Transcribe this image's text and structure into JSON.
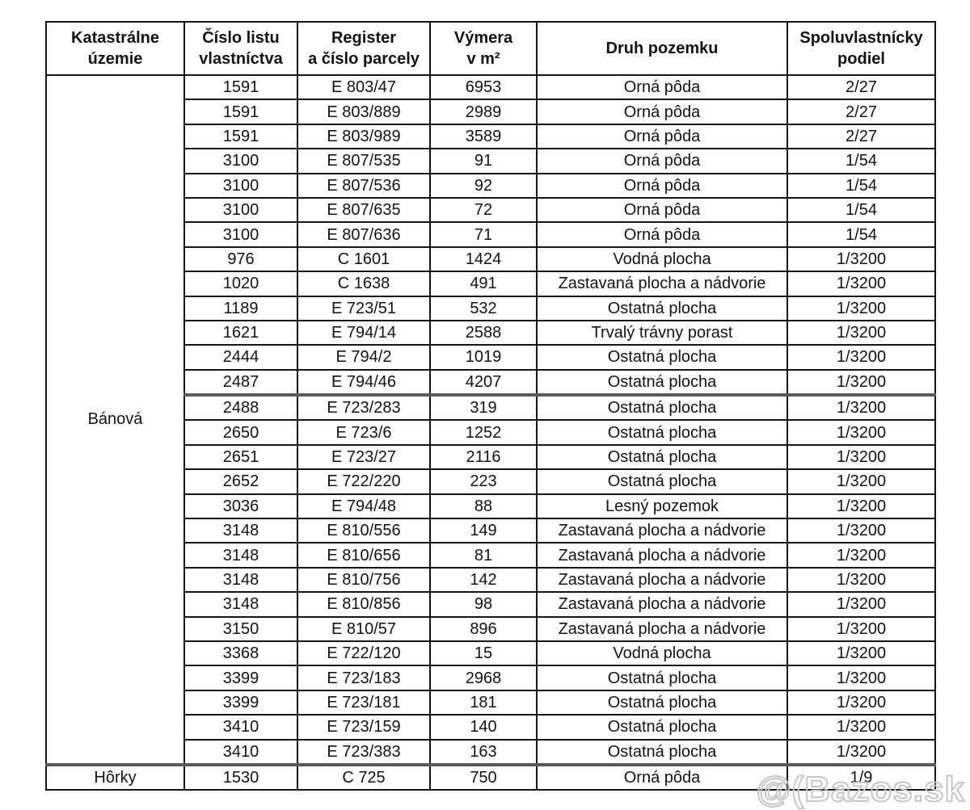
{
  "table": {
    "headers": [
      {
        "id": "katastralne-uzemie",
        "label": "Katastrálne\núzemie"
      },
      {
        "id": "cislo-listu-vlastnictva",
        "label": "Číslo listu\nvlastníctva"
      },
      {
        "id": "register-a-cislo-parcely",
        "label": "Register\na číslo parcely"
      },
      {
        "id": "vymera-v-m2",
        "label": "Výmera\nv m²"
      },
      {
        "id": "druh-pozemku",
        "label": "Druh pozemku"
      },
      {
        "id": "spoluvlastnicky-podiel",
        "label": "Spoluvlastnícky\npodiel"
      }
    ],
    "groups": [
      {
        "territory": "Bánová",
        "rows": [
          [
            "1591",
            "E 803/47",
            "6953",
            "Orná pôda",
            "2/27"
          ],
          [
            "1591",
            "E 803/889",
            "2989",
            "Orná pôda",
            "2/27"
          ],
          [
            "1591",
            "E 803/989",
            "3589",
            "Orná pôda",
            "2/27"
          ],
          [
            "3100",
            "E 807/535",
            "91",
            "Orná pôda",
            "1/54"
          ],
          [
            "3100",
            "E 807/536",
            "92",
            "Orná pôda",
            "1/54"
          ],
          [
            "3100",
            "E 807/635",
            "72",
            "Orná pôda",
            "1/54"
          ],
          [
            "3100",
            "E 807/636",
            "71",
            "Orná pôda",
            "1/54"
          ],
          [
            "976",
            "C 1601",
            "1424",
            "Vodná plocha",
            "1/3200"
          ],
          [
            "1020",
            "C 1638",
            "491",
            "Zastavaná plocha a nádvorie",
            "1/3200"
          ],
          [
            "1189",
            "E 723/51",
            "532",
            "Ostatná plocha",
            "1/3200"
          ],
          [
            "1621",
            "E 794/14",
            "2588",
            "Trvalý trávny porast",
            "1/3200"
          ],
          [
            "2444",
            "E 794/2",
            "1019",
            "Ostatná plocha",
            "1/3200"
          ],
          [
            "2487",
            "E 794/46",
            "4207",
            "Ostatná plocha",
            "1/3200"
          ],
          [
            "2488",
            "E 723/283",
            "319",
            "Ostatná plocha",
            "1/3200"
          ],
          [
            "2650",
            "E 723/6",
            "1252",
            "Ostatná plocha",
            "1/3200"
          ],
          [
            "2651",
            "E 723/27",
            "2116",
            "Ostatná plocha",
            "1/3200"
          ],
          [
            "2652",
            "E 722/220",
            "223",
            "Ostatná plocha",
            "1/3200"
          ],
          [
            "3036",
            "E 794/48",
            "88",
            "Lesný pozemok",
            "1/3200"
          ],
          [
            "3148",
            "E 810/556",
            "149",
            "Zastavaná plocha a nádvorie",
            "1/3200"
          ],
          [
            "3148",
            "E 810/656",
            "81",
            "Zastavaná plocha a nádvorie",
            "1/3200"
          ],
          [
            "3148",
            "E 810/756",
            "142",
            "Zastavaná plocha a nádvorie",
            "1/3200"
          ],
          [
            "3148",
            "E 810/856",
            "98",
            "Zastavaná plocha a nádvorie",
            "1/3200"
          ],
          [
            "3150",
            "E 810/57",
            "896",
            "Zastavaná plocha a nádvorie",
            "1/3200"
          ],
          [
            "3368",
            "E 722/120",
            "15",
            "Vodná plocha",
            "1/3200"
          ],
          [
            "3399",
            "E 723/183",
            "2968",
            "Ostatná plocha",
            "1/3200"
          ],
          [
            "3399",
            "E 723/181",
            "181",
            "Ostatná plocha",
            "1/3200"
          ],
          [
            "3410",
            "E 723/159",
            "140",
            "Ostatná plocha",
            "1/3200"
          ],
          [
            "3410",
            "E 723/383",
            "163",
            "Ostatná plocha",
            "1/3200"
          ]
        ]
      },
      {
        "territory": "Hôrky",
        "rows": [
          [
            "1530",
            "C 725",
            "750",
            "Orná pôda",
            "1/9"
          ]
        ]
      }
    ]
  },
  "watermark": {
    "text": "@(Bazos.sk"
  }
}
